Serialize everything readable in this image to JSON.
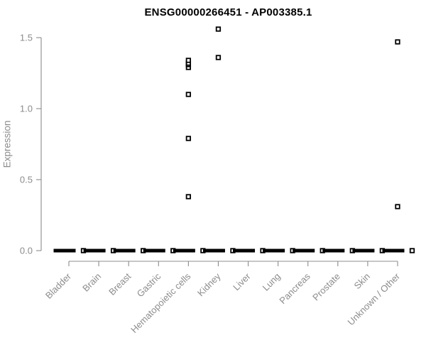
{
  "page": {
    "background": "#ffffff"
  },
  "chart_data": {
    "type": "scatter",
    "subtype": "strip-plot",
    "title": "ENSG00000266451 - AP003385.1",
    "xlabel": "",
    "ylabel": "Expression",
    "categories": [
      "Bladder",
      "Brain",
      "Breast",
      "Gastric",
      "Hematopoietic cells",
      "Kidney",
      "Liver",
      "Lung",
      "Pancreas",
      "Prostate",
      "Skin",
      "Unknown / Other"
    ],
    "y_ticks": [
      "0.0",
      "0.5",
      "1.0",
      "1.5"
    ],
    "y_tick_values": [
      0.0,
      0.5,
      1.0,
      1.5
    ],
    "ylim": [
      0,
      1.6
    ],
    "grid": "off",
    "legend": "none",
    "marker": "open-square",
    "zero_cluster": {
      "value": 0,
      "note": "dense row of overlapping points at expression 0 in every category, drawn as a thick dash plus one offset point",
      "applies_to": "all categories"
    },
    "nonzero_points": [
      {
        "category": "Hematopoietic cells",
        "values": [
          0.38,
          0.79,
          1.1,
          1.29,
          1.31,
          1.32,
          1.34
        ]
      },
      {
        "category": "Kidney",
        "values": [
          1.36,
          1.56
        ]
      },
      {
        "category": "Unknown / Other",
        "values": [
          0.31,
          1.47
        ]
      }
    ],
    "colors": {
      "point": "#000000",
      "axis": "#8c8c8c",
      "axis_text": "#8c8c8c",
      "title": "#000000",
      "background": "#ffffff"
    }
  }
}
